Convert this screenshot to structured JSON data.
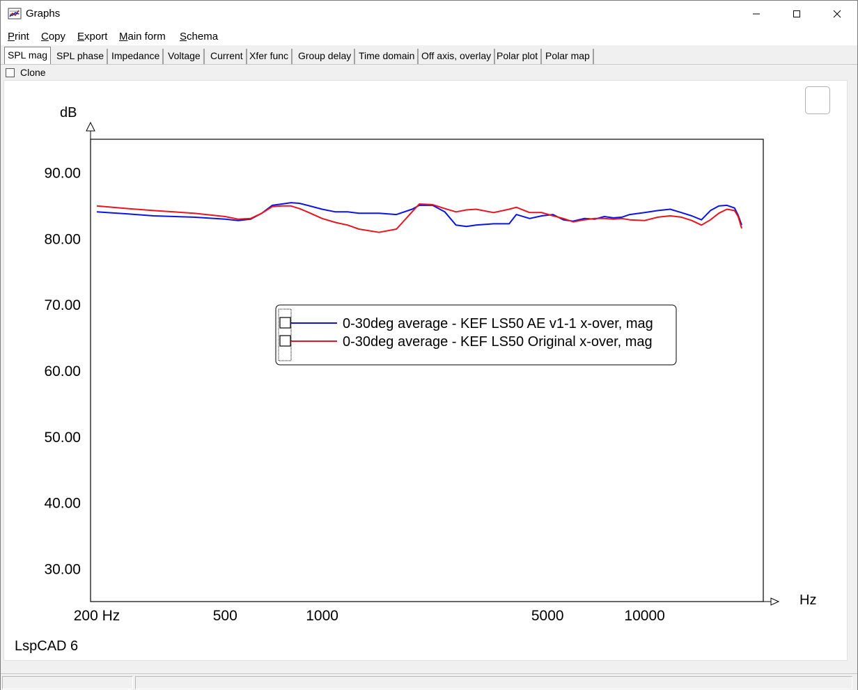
{
  "window": {
    "title": "Graphs",
    "icon": "app-graph-icon"
  },
  "menu": [
    {
      "key": "P",
      "rest": "rint"
    },
    {
      "key": "C",
      "rest": "opy"
    },
    {
      "key": "E",
      "rest": "xport"
    },
    {
      "key": "M",
      "rest": "ain form"
    },
    {
      "key": "S",
      "rest": "chema"
    }
  ],
  "tabs": [
    "SPL mag",
    "SPL phase",
    "Impedance",
    "Voltage",
    "Current",
    "Xfer func",
    "Group delay",
    "Time domain",
    "Off axis, overlay",
    "Polar plot",
    "Polar map"
  ],
  "active_tab": "SPL mag",
  "clone": {
    "label": "Clone",
    "checked": false
  },
  "footer_text": "LspCAD 6",
  "colors": {
    "series1": "#0a14e6",
    "series2": "#e8141e",
    "grid": "#808080"
  },
  "chart_data": {
    "type": "line",
    "ylabel": "dB",
    "xlabel": "Hz",
    "xscale": "log",
    "xlim": [
      200,
      20000
    ],
    "ylim": [
      25,
      95
    ],
    "yticks": [
      30,
      40,
      50,
      60,
      70,
      80,
      90
    ],
    "ytick_labels": [
      "30.00",
      "40.00",
      "50.00",
      "60.00",
      "70.00",
      "80.00",
      "90.00"
    ],
    "xticks": [
      200,
      500,
      1000,
      5000,
      10000
    ],
    "xtick_labels": [
      "200 Hz",
      "500",
      "1000",
      "5000",
      "10000"
    ],
    "grid": true,
    "legend_position": "center",
    "series": [
      {
        "name": "0-30deg average - KEF LS50 AE v1-1 x-over, mag",
        "x": [
          200,
          250,
          300,
          400,
          500,
          550,
          600,
          650,
          700,
          750,
          800,
          850,
          900,
          1000,
          1100,
          1200,
          1300,
          1500,
          1700,
          1900,
          2000,
          2200,
          2400,
          2600,
          2800,
          3000,
          3400,
          3800,
          4000,
          4400,
          4800,
          5200,
          5600,
          6000,
          6500,
          7000,
          7500,
          8000,
          8500,
          9000,
          10000,
          11000,
          12000,
          13000,
          14000,
          15000,
          16000,
          17000,
          18000,
          19000,
          19500,
          20000
        ],
        "y": [
          84,
          83.7,
          83.4,
          83.2,
          82.9,
          82.7,
          82.9,
          83.8,
          85,
          85.2,
          85.4,
          85.3,
          85.0,
          84.4,
          84.0,
          84.0,
          83.8,
          83.8,
          83.6,
          84.4,
          85.0,
          85.0,
          84.0,
          82.0,
          81.8,
          82.0,
          82.2,
          82.2,
          83.6,
          83.0,
          83.4,
          83.6,
          82.8,
          82.6,
          83.0,
          82.9,
          83.3,
          83.1,
          83.2,
          83.6,
          83.9,
          84.2,
          84.4,
          83.9,
          83.4,
          82.8,
          84.2,
          84.9,
          85.0,
          84.6,
          83.5,
          82.0
        ]
      },
      {
        "name": "0-30deg average - KEF LS50 Original x-over, mag",
        "x": [
          200,
          250,
          300,
          400,
          500,
          550,
          600,
          650,
          700,
          750,
          800,
          850,
          900,
          1000,
          1100,
          1200,
          1300,
          1500,
          1700,
          1900,
          2000,
          2200,
          2400,
          2600,
          2800,
          3000,
          3400,
          3800,
          4000,
          4400,
          4800,
          5200,
          5600,
          6000,
          6500,
          7000,
          7500,
          8000,
          8500,
          9000,
          10000,
          11000,
          12000,
          13000,
          14000,
          15000,
          16000,
          17000,
          18000,
          19000,
          19500,
          20000
        ],
        "y": [
          84.9,
          84.5,
          84.2,
          83.8,
          83.3,
          82.9,
          83.0,
          83.8,
          84.8,
          84.9,
          84.9,
          84.5,
          84.0,
          83.0,
          82.4,
          82.0,
          81.4,
          80.9,
          81.4,
          84.0,
          85.2,
          85.1,
          84.5,
          84.0,
          84.3,
          84.4,
          83.9,
          84.4,
          84.7,
          83.9,
          83.9,
          83.4,
          83.0,
          82.5,
          82.8,
          83.0,
          83.0,
          82.9,
          83.0,
          82.8,
          82.7,
          83.2,
          83.4,
          83.2,
          82.7,
          82.0,
          82.8,
          83.8,
          84.4,
          84.2,
          83.3,
          81.5
        ]
      }
    ]
  }
}
